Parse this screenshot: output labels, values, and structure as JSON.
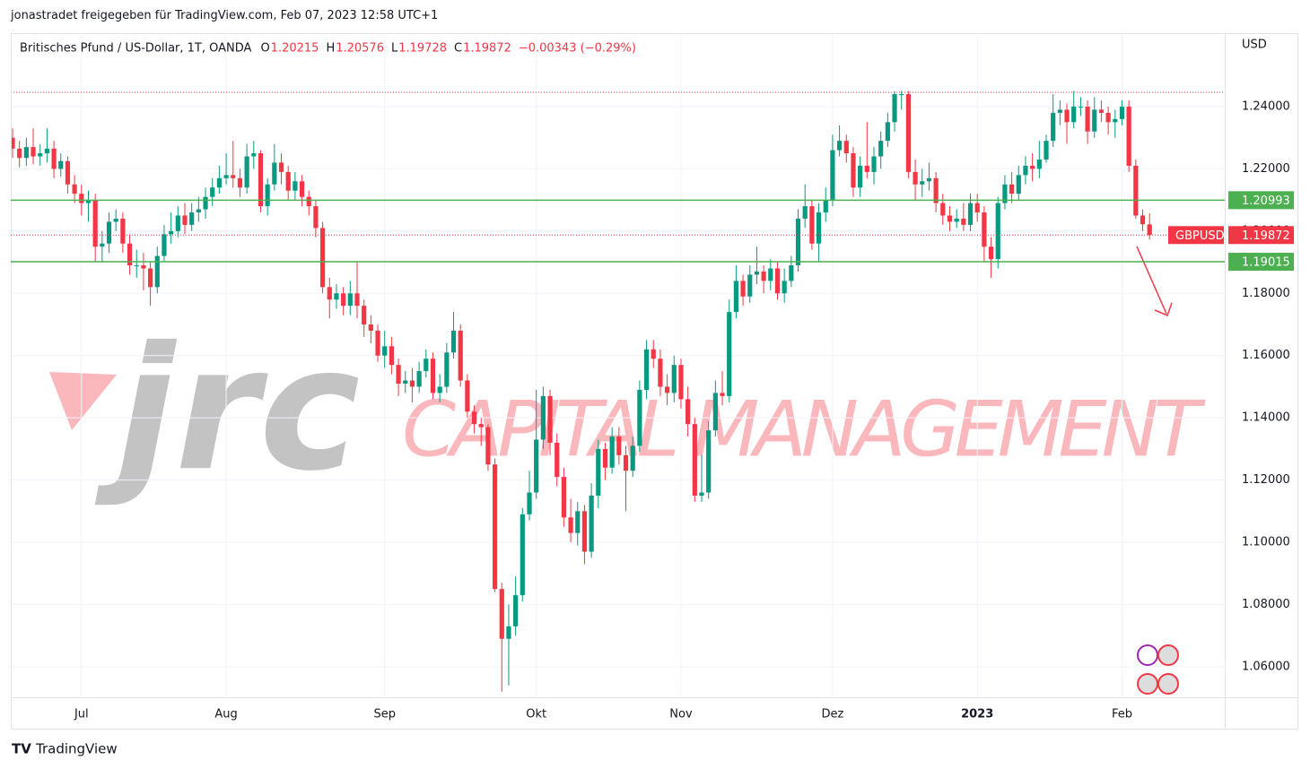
{
  "header": "jonastradet freigegeben für TradingView.com, Feb 07, 2023 12:58 UTC+1",
  "footer": "TradingView",
  "chart_data": {
    "type": "candlestick",
    "symbol": "Britisches Pfund / US-Dollar, 1T, OANDA",
    "legend": {
      "o": "O",
      "h": "H",
      "l": "L",
      "c": "C",
      "change": "−0.00343 (−0.29%)"
    },
    "currency": "USD",
    "watermark": {
      "logo": "jrc",
      "text": "CAPITAL MANAGEMENT"
    },
    "up_color": "#089981",
    "down_color": "#f23645",
    "level_color": "#4caf50",
    "ylim": [
      1.0502,
      1.2636
    ],
    "yticks": [
      {
        "value": 1.06,
        "label": "1.06000"
      },
      {
        "value": 1.08,
        "label": "1.08000"
      },
      {
        "value": 1.1,
        "label": "1.10000"
      },
      {
        "value": 1.12,
        "label": "1.12000"
      },
      {
        "value": 1.14,
        "label": "1.14000"
      },
      {
        "value": 1.16,
        "label": "1.16000"
      },
      {
        "value": 1.18,
        "label": "1.18000"
      },
      {
        "value": 1.2,
        "label": "1.20000"
      },
      {
        "value": 1.22,
        "label": "1.22000"
      },
      {
        "value": 1.24,
        "label": "1.24000"
      }
    ],
    "levels": [
      {
        "value": 1.20993,
        "label": "1.20993"
      },
      {
        "value": 1.19015,
        "label": "1.19015"
      }
    ],
    "dotted_level": 1.2446,
    "price_label": "GBPUSD",
    "categories": [
      null,
      null,
      null,
      null,
      null,
      null,
      null,
      null,
      null,
      null,
      "Jul",
      null,
      null,
      null,
      null,
      null,
      null,
      null,
      null,
      null,
      null,
      null,
      null,
      null,
      null,
      null,
      null,
      null,
      null,
      null,
      null,
      "Aug",
      null,
      null,
      null,
      null,
      null,
      null,
      null,
      null,
      null,
      null,
      null,
      null,
      null,
      null,
      null,
      null,
      null,
      null,
      null,
      null,
      null,
      null,
      "Sep",
      null,
      null,
      null,
      null,
      null,
      null,
      null,
      null,
      null,
      null,
      null,
      null,
      null,
      null,
      null,
      null,
      null,
      null,
      null,
      null,
      null,
      "Okt",
      null,
      null,
      null,
      null,
      null,
      null,
      null,
      null,
      null,
      null,
      null,
      null,
      null,
      null,
      null,
      null,
      null,
      null,
      null,
      null,
      "Nov",
      null,
      null,
      null,
      null,
      null,
      null,
      null,
      null,
      null,
      null,
      null,
      null,
      null,
      null,
      null,
      null,
      null,
      null,
      null,
      null,
      null,
      "Dez",
      null,
      null,
      null,
      null,
      null,
      null,
      null,
      null,
      null,
      null,
      null,
      null,
      null,
      null,
      null,
      null,
      null,
      null,
      null,
      null,
      "2023",
      null,
      null,
      null,
      null,
      null,
      null,
      null,
      null,
      null,
      null,
      null,
      null,
      null,
      null,
      null,
      null,
      null,
      null,
      null,
      null,
      "Feb",
      null,
      null,
      null,
      null
    ],
    "ohlc": [
      [
        1.23,
        1.233,
        1.2235,
        1.2265
      ],
      [
        1.2265,
        1.229,
        1.2205,
        1.2235
      ],
      [
        1.2235,
        1.23,
        1.221,
        1.227
      ],
      [
        1.227,
        1.233,
        1.2215,
        1.224
      ],
      [
        1.224,
        1.228,
        1.221,
        1.225
      ],
      [
        1.225,
        1.233,
        1.222,
        1.2265
      ],
      [
        1.2265,
        1.229,
        1.217,
        1.22
      ],
      [
        1.22,
        1.225,
        1.2175,
        1.2225
      ],
      [
        1.2225,
        1.224,
        1.212,
        1.215
      ],
      [
        1.215,
        1.218,
        1.209,
        1.212
      ],
      [
        1.212,
        1.215,
        1.205,
        1.209
      ],
      [
        1.209,
        1.213,
        1.203,
        1.21
      ],
      [
        1.21,
        1.212,
        1.19,
        1.195
      ],
      [
        1.195,
        1.2,
        1.19,
        1.196
      ],
      [
        1.196,
        1.206,
        1.193,
        1.203
      ],
      [
        1.203,
        1.207,
        1.2,
        1.204
      ],
      [
        1.204,
        1.206,
        1.193,
        1.196
      ],
      [
        1.196,
        1.199,
        1.186,
        1.189
      ],
      [
        1.189,
        1.194,
        1.185,
        1.189
      ],
      [
        1.189,
        1.193,
        1.181,
        1.188
      ],
      [
        1.188,
        1.19,
        1.176,
        1.182
      ],
      [
        1.182,
        1.195,
        1.18,
        1.192
      ],
      [
        1.192,
        1.202,
        1.19,
        1.199
      ],
      [
        1.199,
        1.206,
        1.196,
        1.2
      ],
      [
        1.2,
        1.208,
        1.198,
        1.205
      ],
      [
        1.205,
        1.209,
        1.199,
        1.202
      ],
      [
        1.202,
        1.209,
        1.2,
        1.206
      ],
      [
        1.206,
        1.211,
        1.203,
        1.207
      ],
      [
        1.207,
        1.214,
        1.204,
        1.211
      ],
      [
        1.211,
        1.217,
        1.208,
        1.214
      ],
      [
        1.214,
        1.221,
        1.212,
        1.217
      ],
      [
        1.217,
        1.225,
        1.215,
        1.218
      ],
      [
        1.218,
        1.229,
        1.214,
        1.217
      ],
      [
        1.217,
        1.22,
        1.211,
        1.214
      ],
      [
        1.214,
        1.228,
        1.212,
        1.224
      ],
      [
        1.224,
        1.229,
        1.22,
        1.225
      ],
      [
        1.225,
        1.226,
        1.206,
        1.208
      ],
      [
        1.208,
        1.217,
        1.205,
        1.215
      ],
      [
        1.215,
        1.228,
        1.213,
        1.222
      ],
      [
        1.222,
        1.225,
        1.215,
        1.219
      ],
      [
        1.219,
        1.221,
        1.21,
        1.213
      ],
      [
        1.213,
        1.219,
        1.21,
        1.216
      ],
      [
        1.216,
        1.218,
        1.208,
        1.211
      ],
      [
        1.211,
        1.213,
        1.205,
        1.208
      ],
      [
        1.208,
        1.21,
        1.198,
        1.201
      ],
      [
        1.201,
        1.203,
        1.18,
        1.182
      ],
      [
        1.182,
        1.185,
        1.172,
        1.178
      ],
      [
        1.178,
        1.183,
        1.175,
        1.18
      ],
      [
        1.18,
        1.182,
        1.173,
        1.176
      ],
      [
        1.176,
        1.184,
        1.173,
        1.18
      ],
      [
        1.18,
        1.19,
        1.172,
        1.176
      ],
      [
        1.176,
        1.178,
        1.166,
        1.17
      ],
      [
        1.17,
        1.173,
        1.164,
        1.168
      ],
      [
        1.168,
        1.17,
        1.158,
        1.16
      ],
      [
        1.16,
        1.168,
        1.156,
        1.163
      ],
      [
        1.163,
        1.166,
        1.154,
        1.157
      ],
      [
        1.157,
        1.159,
        1.147,
        1.151
      ],
      [
        1.151,
        1.155,
        1.148,
        1.152
      ],
      [
        1.152,
        1.156,
        1.145,
        1.15
      ],
      [
        1.15,
        1.158,
        1.148,
        1.155
      ],
      [
        1.155,
        1.162,
        1.153,
        1.159
      ],
      [
        1.159,
        1.161,
        1.146,
        1.148
      ],
      [
        1.148,
        1.154,
        1.145,
        1.15
      ],
      [
        1.15,
        1.164,
        1.148,
        1.161
      ],
      [
        1.161,
        1.174,
        1.159,
        1.168
      ],
      [
        1.168,
        1.17,
        1.15,
        1.152
      ],
      [
        1.152,
        1.154,
        1.14,
        1.142
      ],
      [
        1.142,
        1.144,
        1.135,
        1.138
      ],
      [
        1.138,
        1.14,
        1.131,
        1.137
      ],
      [
        1.137,
        1.138,
        1.123,
        1.125
      ],
      [
        1.125,
        1.127,
        1.084,
        1.085
      ],
      [
        1.085,
        1.087,
        1.052,
        1.069
      ],
      [
        1.069,
        1.08,
        1.054,
        1.073
      ],
      [
        1.073,
        1.089,
        1.07,
        1.083
      ],
      [
        1.083,
        1.111,
        1.081,
        1.109
      ],
      [
        1.109,
        1.123,
        1.107,
        1.116
      ],
      [
        1.116,
        1.149,
        1.114,
        1.133
      ],
      [
        1.133,
        1.15,
        1.13,
        1.147
      ],
      [
        1.147,
        1.149,
        1.128,
        1.132
      ],
      [
        1.132,
        1.135,
        1.118,
        1.121
      ],
      [
        1.121,
        1.124,
        1.105,
        1.108
      ],
      [
        1.108,
        1.114,
        1.1,
        1.103
      ],
      [
        1.103,
        1.113,
        1.099,
        1.11
      ],
      [
        1.11,
        1.112,
        1.093,
        1.097
      ],
      [
        1.097,
        1.119,
        1.095,
        1.115
      ],
      [
        1.115,
        1.133,
        1.111,
        1.13
      ],
      [
        1.13,
        1.132,
        1.12,
        1.124
      ],
      [
        1.124,
        1.137,
        1.122,
        1.134
      ],
      [
        1.134,
        1.137,
        1.125,
        1.128
      ],
      [
        1.128,
        1.131,
        1.11,
        1.123
      ],
      [
        1.123,
        1.134,
        1.121,
        1.131
      ],
      [
        1.131,
        1.152,
        1.129,
        1.149
      ],
      [
        1.149,
        1.165,
        1.146,
        1.162
      ],
      [
        1.162,
        1.165,
        1.156,
        1.159
      ],
      [
        1.159,
        1.162,
        1.147,
        1.15
      ],
      [
        1.15,
        1.154,
        1.144,
        1.148
      ],
      [
        1.148,
        1.16,
        1.145,
        1.157
      ],
      [
        1.157,
        1.159,
        1.143,
        1.146
      ],
      [
        1.146,
        1.15,
        1.134,
        1.138
      ],
      [
        1.138,
        1.14,
        1.113,
        1.115
      ],
      [
        1.115,
        1.128,
        1.113,
        1.116
      ],
      [
        1.116,
        1.139,
        1.114,
        1.136
      ],
      [
        1.136,
        1.152,
        1.134,
        1.148
      ],
      [
        1.148,
        1.155,
        1.144,
        1.147
      ],
      [
        1.147,
        1.178,
        1.145,
        1.174
      ],
      [
        1.174,
        1.189,
        1.172,
        1.184
      ],
      [
        1.184,
        1.186,
        1.176,
        1.179
      ],
      [
        1.179,
        1.189,
        1.177,
        1.186
      ],
      [
        1.186,
        1.195,
        1.183,
        1.187
      ],
      [
        1.187,
        1.189,
        1.18,
        1.184
      ],
      [
        1.184,
        1.191,
        1.181,
        1.188
      ],
      [
        1.188,
        1.19,
        1.178,
        1.18
      ],
      [
        1.18,
        1.188,
        1.177,
        1.184
      ],
      [
        1.184,
        1.192,
        1.182,
        1.189
      ],
      [
        1.189,
        1.207,
        1.187,
        1.204
      ],
      [
        1.204,
        1.215,
        1.201,
        1.208
      ],
      [
        1.208,
        1.21,
        1.194,
        1.196
      ],
      [
        1.196,
        1.209,
        1.19,
        1.206
      ],
      [
        1.206,
        1.214,
        1.203,
        1.21
      ],
      [
        1.21,
        1.231,
        1.208,
        1.226
      ],
      [
        1.226,
        1.234,
        1.224,
        1.229
      ],
      [
        1.229,
        1.231,
        1.222,
        1.225
      ],
      [
        1.225,
        1.227,
        1.211,
        1.214
      ],
      [
        1.214,
        1.224,
        1.211,
        1.221
      ],
      [
        1.221,
        1.235,
        1.217,
        1.219
      ],
      [
        1.219,
        1.227,
        1.215,
        1.224
      ],
      [
        1.224,
        1.232,
        1.22,
        1.229
      ],
      [
        1.229,
        1.238,
        1.227,
        1.235
      ],
      [
        1.235,
        1.245,
        1.232,
        1.244
      ],
      [
        1.244,
        1.245,
        1.239,
        1.244
      ],
      [
        1.244,
        1.245,
        1.217,
        1.219
      ],
      [
        1.219,
        1.223,
        1.21,
        1.215
      ],
      [
        1.215,
        1.22,
        1.211,
        1.216
      ],
      [
        1.216,
        1.222,
        1.213,
        1.217
      ],
      [
        1.217,
        1.219,
        1.206,
        1.209
      ],
      [
        1.209,
        1.212,
        1.202,
        1.205
      ],
      [
        1.205,
        1.208,
        1.2,
        1.203
      ],
      [
        1.203,
        1.207,
        1.201,
        1.204
      ],
      [
        1.204,
        1.209,
        1.2,
        1.202
      ],
      [
        1.202,
        1.212,
        1.2,
        1.209
      ],
      [
        1.209,
        1.212,
        1.203,
        1.206
      ],
      [
        1.206,
        1.208,
        1.19,
        1.195
      ],
      [
        1.195,
        1.198,
        1.185,
        1.191
      ],
      [
        1.191,
        1.211,
        1.188,
        1.209
      ],
      [
        1.209,
        1.218,
        1.207,
        1.215
      ],
      [
        1.215,
        1.219,
        1.209,
        1.212
      ],
      [
        1.212,
        1.221,
        1.21,
        1.218
      ],
      [
        1.218,
        1.224,
        1.215,
        1.221
      ],
      [
        1.221,
        1.225,
        1.216,
        1.22
      ],
      [
        1.22,
        1.229,
        1.217,
        1.223
      ],
      [
        1.223,
        1.231,
        1.222,
        1.229
      ],
      [
        1.229,
        1.244,
        1.227,
        1.238
      ],
      [
        1.238,
        1.242,
        1.234,
        1.239
      ],
      [
        1.239,
        1.241,
        1.228,
        1.235
      ],
      [
        1.235,
        1.245,
        1.233,
        1.24
      ],
      [
        1.24,
        1.243,
        1.237,
        1.24
      ],
      [
        1.24,
        1.242,
        1.228,
        1.232
      ],
      [
        1.232,
        1.243,
        1.23,
        1.239
      ],
      [
        1.239,
        1.242,
        1.235,
        1.238
      ],
      [
        1.238,
        1.24,
        1.231,
        1.235
      ],
      [
        1.235,
        1.239,
        1.23,
        1.236
      ],
      [
        1.236,
        1.242,
        1.234,
        1.24
      ],
      [
        1.24,
        1.242,
        1.219,
        1.221
      ],
      [
        1.221,
        1.223,
        1.204,
        1.205
      ],
      [
        1.205,
        1.207,
        1.2,
        1.2022
      ],
      [
        1.20215,
        1.20576,
        1.19728,
        1.19872
      ]
    ]
  }
}
